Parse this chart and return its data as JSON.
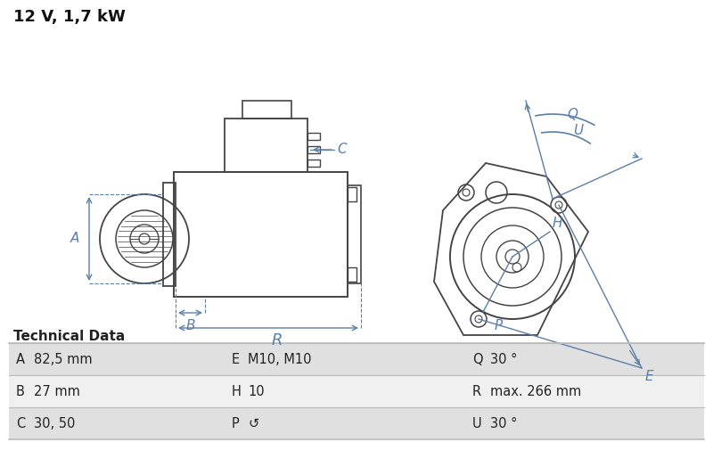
{
  "title": "12 V, 1,7 kW",
  "bg_color": "#ffffff",
  "diagram_color": "#5b7fa6",
  "part_color": "#444444",
  "table_header": "Technical Data",
  "table_rows": [
    [
      "A",
      "82,5 mm",
      "E",
      "M10, M10",
      "Q",
      "30 °"
    ],
    [
      "B",
      "27 mm",
      "H",
      "10",
      "R",
      "max. 266 mm"
    ],
    [
      "C",
      "30, 50",
      "P",
      "↺",
      "U",
      "30 °"
    ]
  ],
  "row_bg_odd": "#e0e0e0",
  "row_bg_even": "#f0f0f0",
  "header_color": "#222222",
  "separator_color": "#bbbbbb"
}
